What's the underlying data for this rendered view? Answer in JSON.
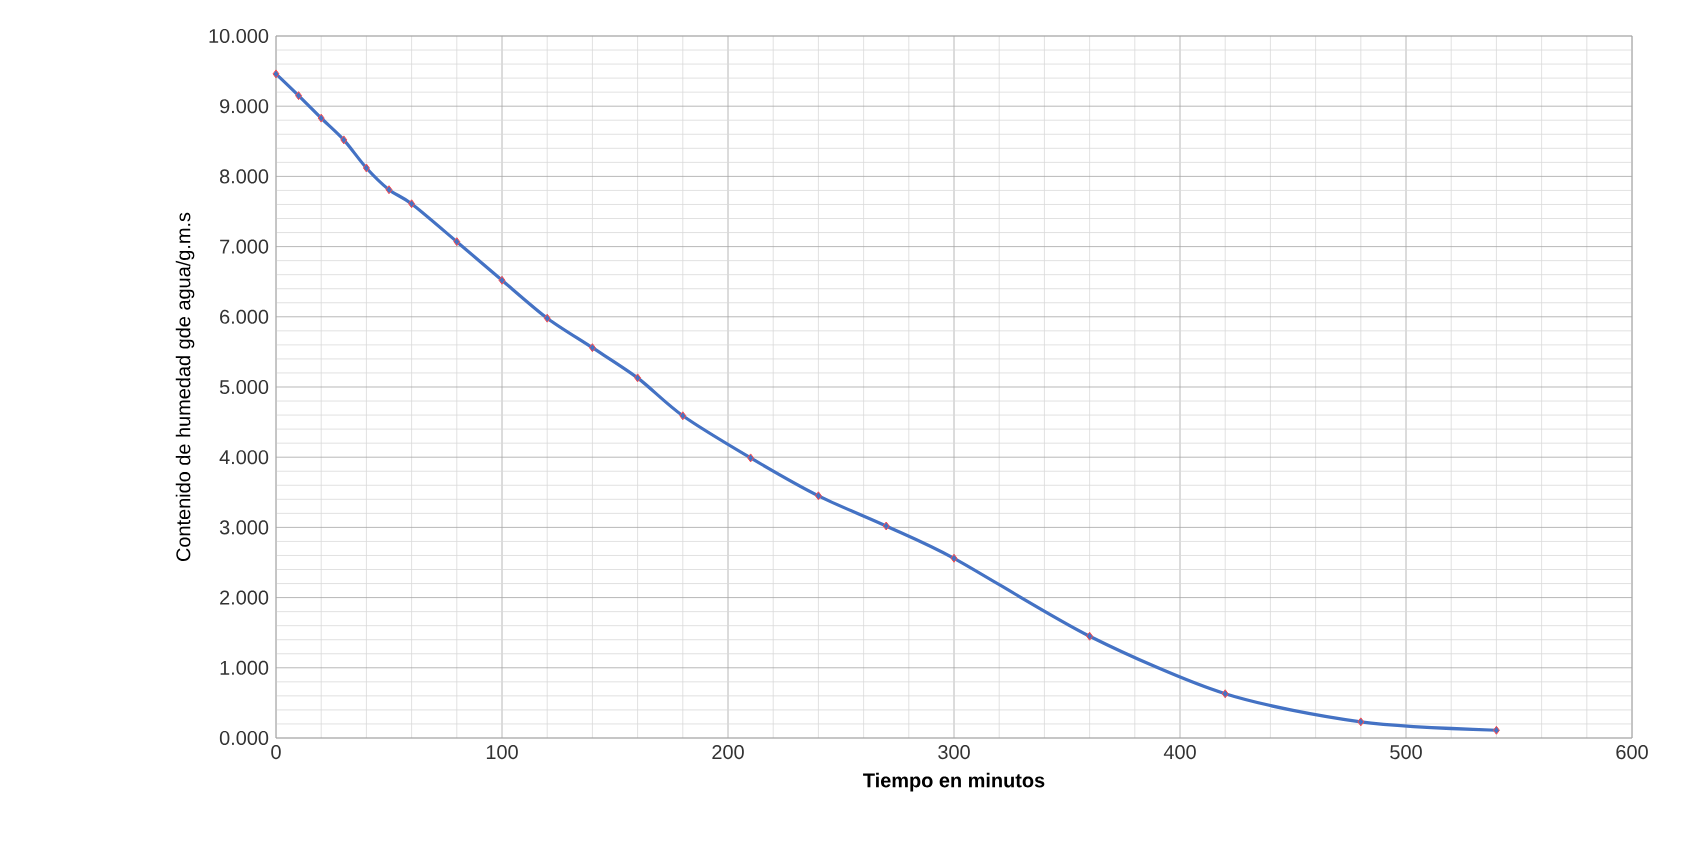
{
  "chart_data": {
    "type": "line",
    "xlabel": "Tiempo en minutos",
    "ylabel": "Contenido de humedad gde agua/g.m.s",
    "x": [
      0,
      10,
      20,
      30,
      40,
      50,
      60,
      80,
      100,
      120,
      140,
      160,
      180,
      210,
      240,
      270,
      300,
      360,
      420,
      480,
      540
    ],
    "series": [
      {
        "color": "#4472c4",
        "values": [
          9.46,
          9.15,
          8.83,
          8.52,
          8.12,
          7.81,
          7.61,
          7.07,
          6.52,
          5.98,
          5.56,
          5.13,
          4.59,
          3.99,
          3.45,
          3.02,
          2.56,
          1.45,
          0.63,
          0.23,
          0.11
        ]
      }
    ],
    "xlim": [
      0,
      600
    ],
    "ylim": [
      0,
      10
    ],
    "xticks": [
      0,
      100,
      200,
      300,
      400,
      500,
      600
    ],
    "yticks": [
      {
        "value": 0,
        "label": "0.000"
      },
      {
        "value": 1,
        "label": "1.000"
      },
      {
        "value": 2,
        "label": "2.000"
      },
      {
        "value": 3,
        "label": "3.000"
      },
      {
        "value": 4,
        "label": "4.000"
      },
      {
        "value": 5,
        "label": "5.000"
      },
      {
        "value": 6,
        "label": "6.000"
      },
      {
        "value": 7,
        "label": "7.000"
      },
      {
        "value": 8,
        "label": "8.000"
      },
      {
        "value": 9,
        "label": "9.000"
      },
      {
        "value": 10,
        "label": "10.000"
      }
    ],
    "grid": true,
    "marker": "diamond",
    "line_style": "solid"
  }
}
